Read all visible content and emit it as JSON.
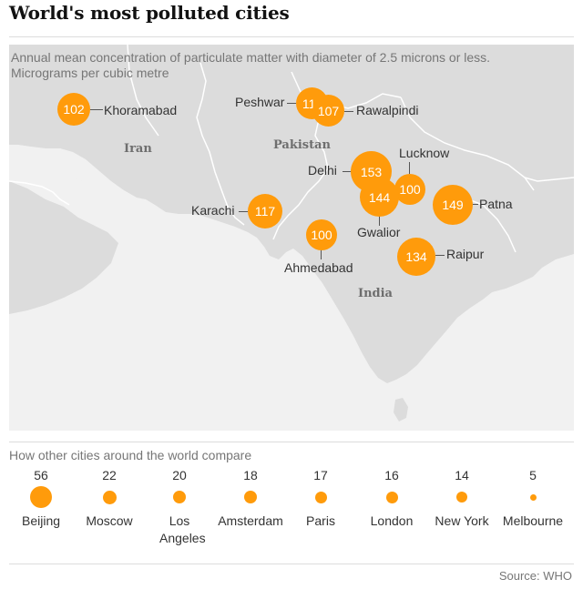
{
  "header": {
    "title": "World's most polluted cities"
  },
  "map": {
    "subtitle_line1": "Annual mean concentration of particulate matter with diameter of 2.5 microns or less.",
    "subtitle_line2": "Micrograms per cubic metre",
    "colors": {
      "land": "#dcdcdc",
      "sea": "#f1f1f1",
      "border": "#ffffff",
      "bubble": "#ff9b0b"
    },
    "countries": {
      "iran": "Iran",
      "pakistan": "Pakistan",
      "india": "India"
    },
    "cities": {
      "khoramabad": {
        "name": "Khoramabad",
        "value": 102
      },
      "peshwar": {
        "name": "Peshwar",
        "value": 111
      },
      "rawalpindi": {
        "name": "Rawalpindi",
        "value": 107
      },
      "delhi": {
        "name": "Delhi",
        "value": 153
      },
      "lucknow": {
        "name": "Lucknow",
        "value": 100
      },
      "gwalior": {
        "name": "Gwalior",
        "value": 144
      },
      "patna": {
        "name": "Patna",
        "value": 149
      },
      "karachi": {
        "name": "Karachi",
        "value": 117
      },
      "ahmedabad": {
        "name": "Ahmedabad",
        "value": 100
      },
      "raipur": {
        "name": "Raipur",
        "value": 134
      }
    }
  },
  "comparison": {
    "heading": "How other cities around the world compare",
    "items": [
      {
        "name": "Beijing",
        "value": 56
      },
      {
        "name": "Moscow",
        "value": 22
      },
      {
        "name": "Los Angeles",
        "value": 20
      },
      {
        "name": "Amsterdam",
        "value": 18
      },
      {
        "name": "Paris",
        "value": 17
      },
      {
        "name": "London",
        "value": 16
      },
      {
        "name": "New York",
        "value": 14
      },
      {
        "name": "Melbourne",
        "value": 5
      }
    ]
  },
  "footer": {
    "source": "Source: WHO"
  }
}
